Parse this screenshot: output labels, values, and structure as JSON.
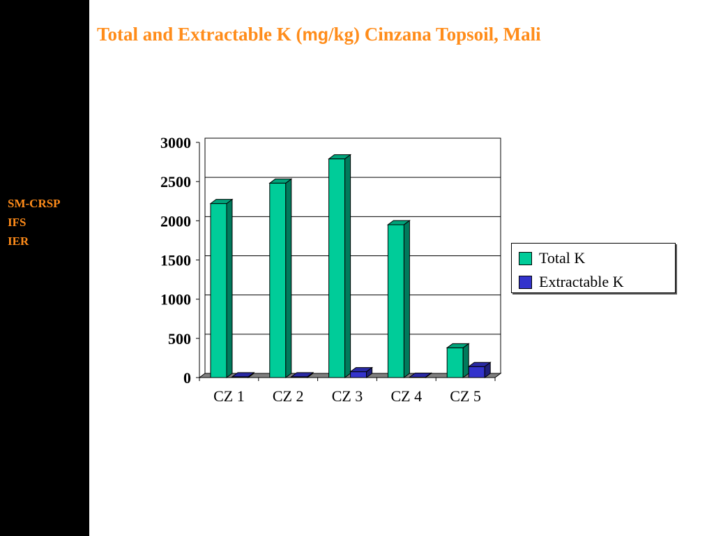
{
  "slide": {
    "title_prefix": "Total and Extractable K (",
    "title_unit_mg": "mg",
    "title_suffix": "/kg) Cinzana Topsoil, Mali",
    "sidebar_labels": [
      "SM-CRSP",
      "IFS",
      "IER"
    ]
  },
  "colors": {
    "title": "#ff8c1a",
    "sidebar_bg": "#000000",
    "total_k": "#00cc99",
    "extractable_k": "#3333cc",
    "floor": "#808080"
  },
  "chart_data": {
    "type": "bar",
    "title": "",
    "xlabel": "",
    "ylabel": "",
    "categories": [
      "CZ 1",
      "CZ 2",
      "CZ 3",
      "CZ 4",
      "CZ 5"
    ],
    "series": [
      {
        "name": "Total K",
        "values": [
          2220,
          2480,
          2790,
          1950,
          380
        ]
      },
      {
        "name": "Extractable K",
        "values": [
          10,
          10,
          75,
          5,
          140
        ]
      }
    ],
    "ylim": [
      0,
      3000
    ],
    "yticks": [
      "0",
      "500",
      "1000",
      "1500",
      "2000",
      "2500",
      "3000"
    ],
    "grid": true,
    "legend": "right",
    "style": "3d-column"
  }
}
